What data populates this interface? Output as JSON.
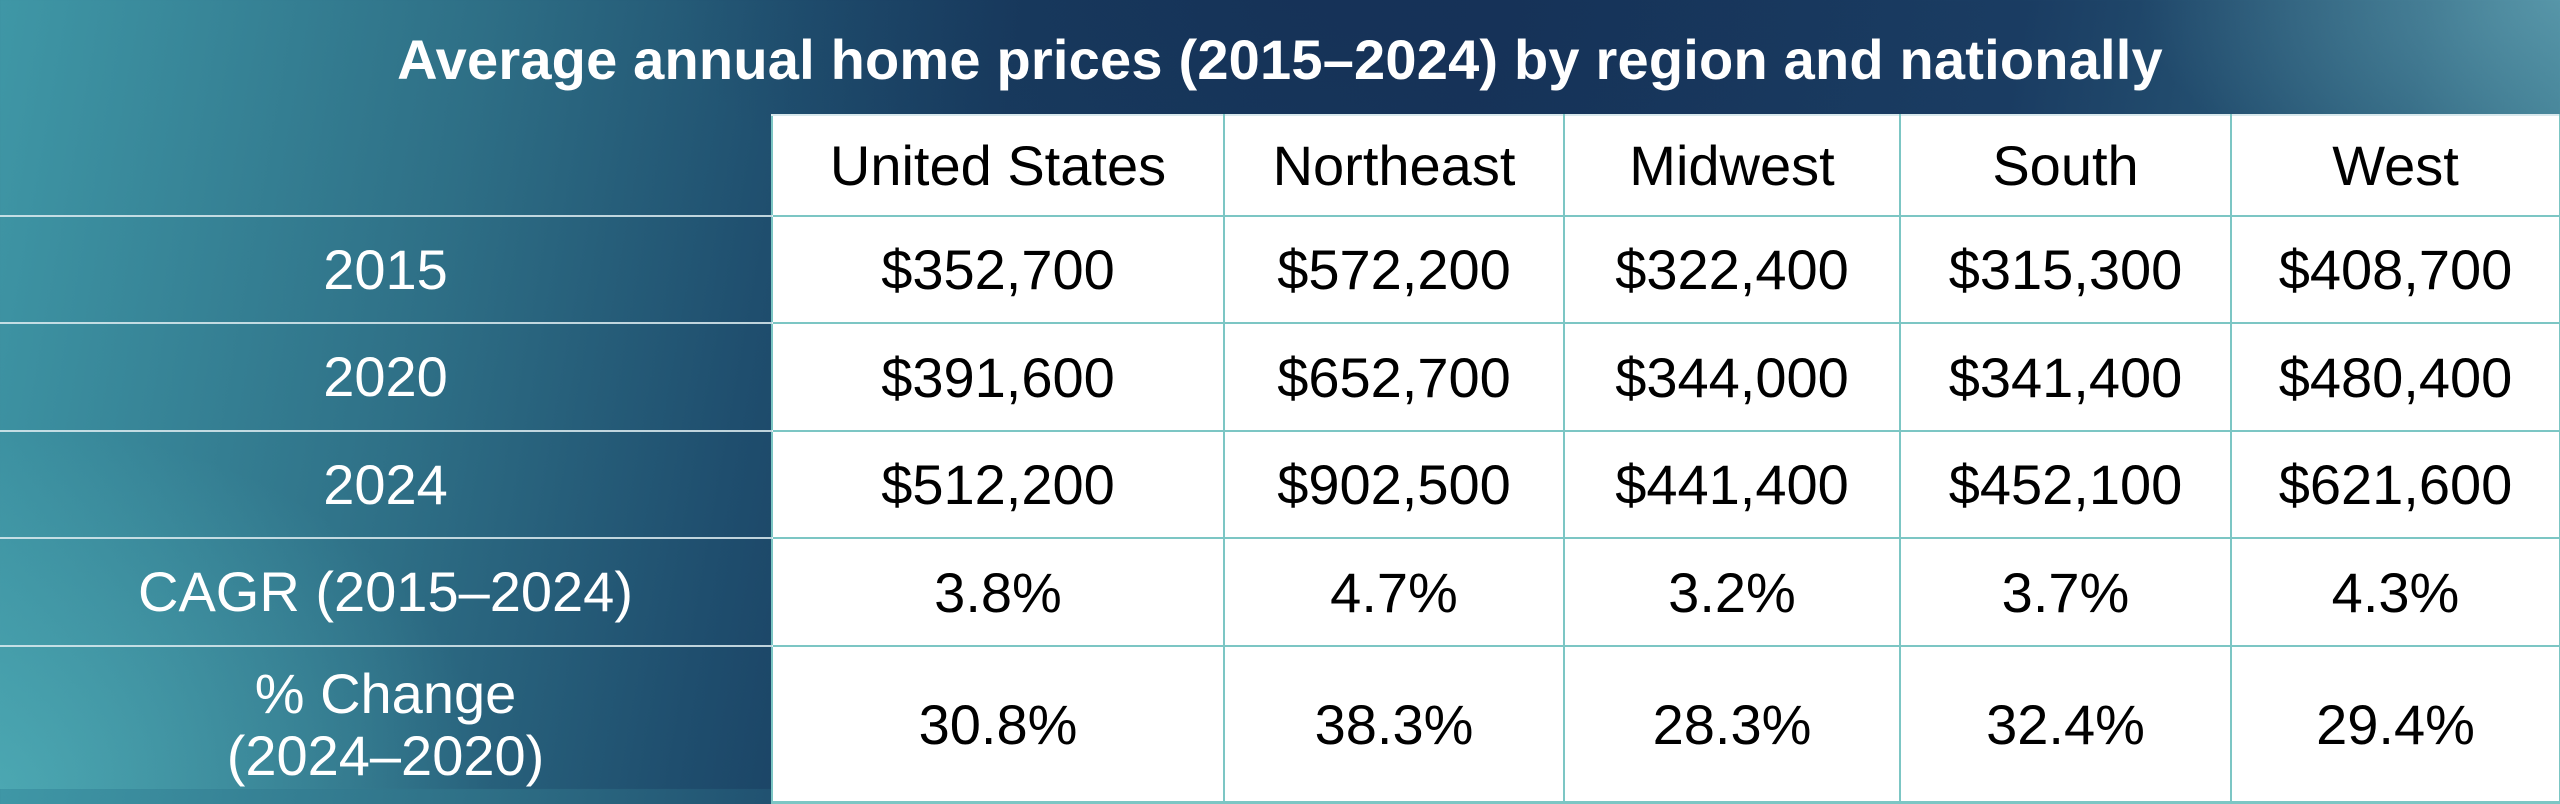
{
  "title": "Average annual home prices (2015–2024) by region and nationally",
  "chart_data": {
    "type": "table",
    "title": "Average annual home prices (2015–2024) by region and nationally",
    "columns": [
      "United States",
      "Northeast",
      "Midwest",
      "South",
      "West"
    ],
    "rows": [
      {
        "label": "2015",
        "values": [
          "$352,700",
          "$572,200",
          "$322,400",
          "$315,300",
          "$408,700"
        ]
      },
      {
        "label": "2020",
        "values": [
          "$391,600",
          "$652,700",
          "$344,000",
          "$341,400",
          "$480,400"
        ]
      },
      {
        "label": "2024",
        "values": [
          "$512,200",
          "$902,500",
          "$441,400",
          "$452,100",
          "$621,600"
        ]
      },
      {
        "label": "CAGR (2015–2024)",
        "values": [
          "3.8%",
          "4.7%",
          "3.2%",
          "3.7%",
          "4.3%"
        ]
      },
      {
        "label_lines": [
          "% Change",
          "(2024–2020)"
        ],
        "values": [
          "30.8%",
          "38.3%",
          "28.3%",
          "32.4%",
          "29.4%"
        ]
      }
    ]
  }
}
